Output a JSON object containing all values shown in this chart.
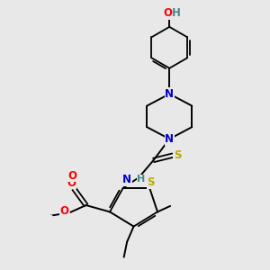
{
  "bg_color": "#e8e8e8",
  "atom_colors": {
    "C": "#000000",
    "N": "#0000cc",
    "O": "#ff0000",
    "S": "#bbaa00",
    "H": "#448888"
  },
  "bond_color": "#000000",
  "font_size": 8.5,
  "fig_size": [
    3.0,
    3.0
  ],
  "dpi": 100
}
